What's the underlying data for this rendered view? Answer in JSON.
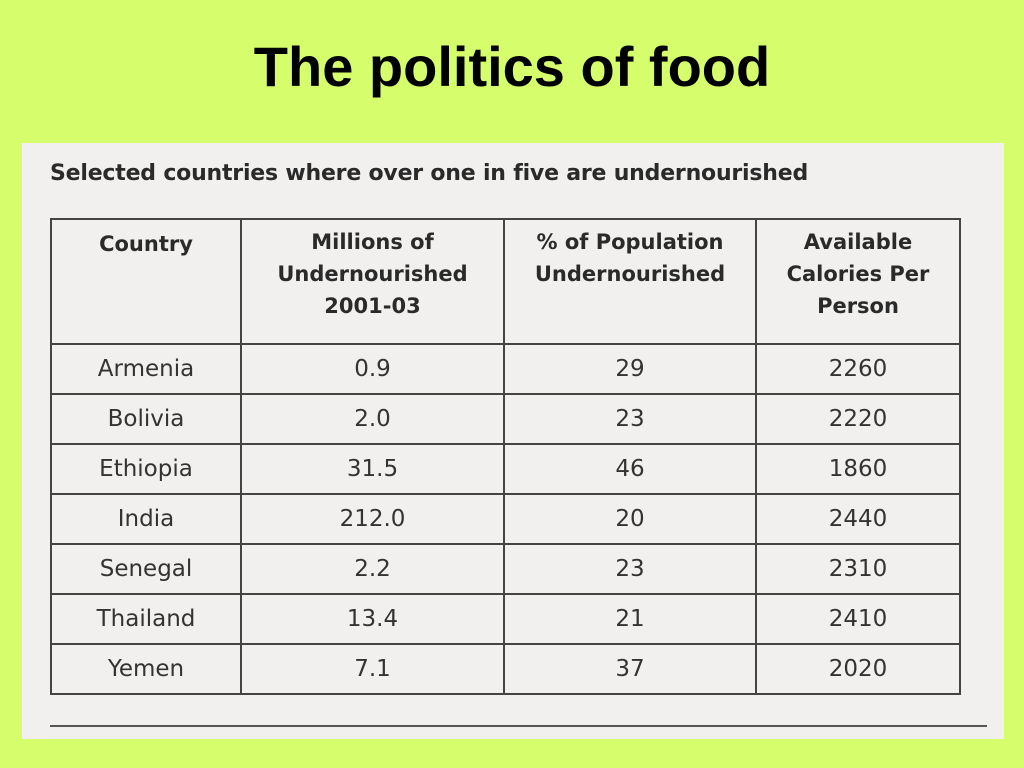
{
  "slide": {
    "title": "The politics of food"
  },
  "table": {
    "caption": "Selected countries where over one in five are undernourished",
    "headers": [
      "Country",
      "Millions of Undernourished 2001-03",
      "% of Population Undernourished",
      "Available Calories Per Person"
    ],
    "rows": [
      [
        "Armenia",
        "0.9",
        "29",
        "2260"
      ],
      [
        "Bolivia",
        "2.0",
        "23",
        "2220"
      ],
      [
        "Ethiopia",
        "31.5",
        "46",
        "1860"
      ],
      [
        "India",
        "212.0",
        "20",
        "2440"
      ],
      [
        "Senegal",
        "2.2",
        "23",
        "2310"
      ],
      [
        "Thailand",
        "13.4",
        "21",
        "2410"
      ],
      [
        "Yemen",
        "7.1",
        "37",
        "2020"
      ]
    ]
  }
}
